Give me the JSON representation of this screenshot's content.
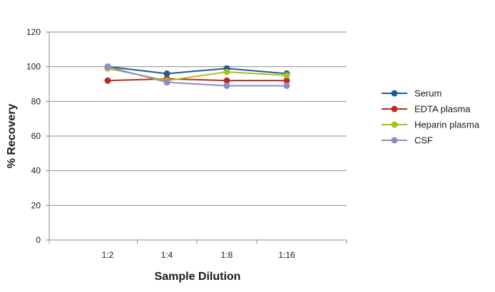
{
  "chart_data": {
    "type": "line",
    "title": "",
    "xlabel": "Sample Dilution",
    "ylabel": "% Recovery",
    "categories": [
      "1:2",
      "1:4",
      "1:8",
      "1:16"
    ],
    "ylim": [
      0,
      120
    ],
    "yticks": [
      0,
      20,
      40,
      60,
      80,
      100,
      120
    ],
    "grid": "horizontal",
    "legend_position": "right",
    "series": [
      {
        "name": "Serum",
        "color": "#1f5a96",
        "values": [
          100,
          96,
          99,
          96
        ]
      },
      {
        "name": "EDTA plasma",
        "color": "#c0281d",
        "values": [
          92,
          93,
          92,
          92
        ]
      },
      {
        "name": "Heparin plasma",
        "color": "#a8bf1c",
        "values": [
          99,
          92,
          97,
          95
        ]
      },
      {
        "name": "CSF",
        "color": "#8a8ccb",
        "values": [
          100,
          91,
          89,
          89
        ]
      }
    ]
  }
}
